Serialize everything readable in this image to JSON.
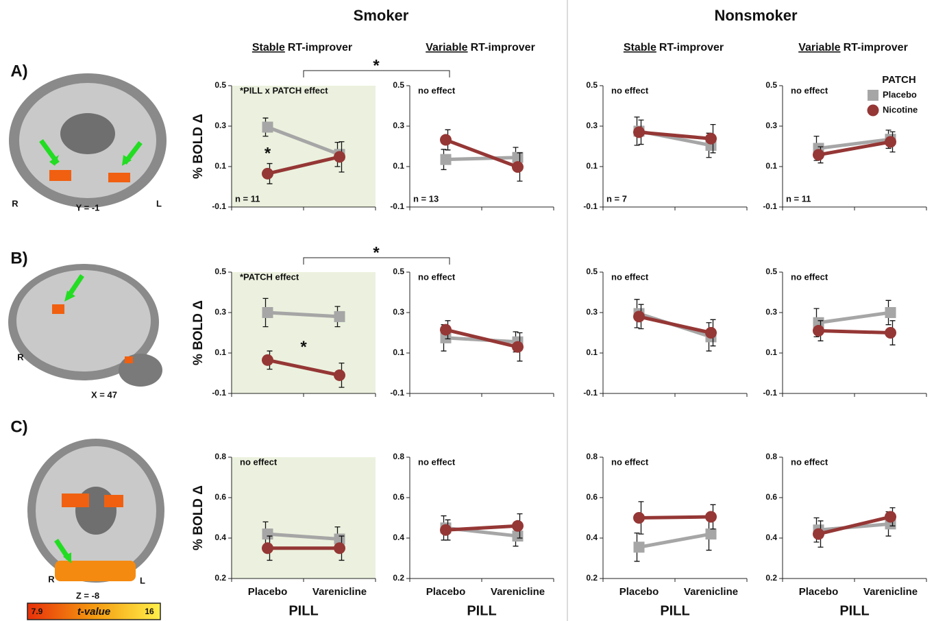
{
  "header": {
    "groups": [
      "Smoker",
      "Nonsmoker"
    ],
    "columns": [
      {
        "underlined": "Stable",
        "rest": "RT-improver"
      },
      {
        "underlined": "Variable",
        "rest": "RT-improver"
      },
      {
        "underlined": "Stable",
        "rest": "RT-improver"
      },
      {
        "underlined": "Variable",
        "rest": "RT-improver"
      }
    ]
  },
  "rows": [
    "A)",
    "B)",
    "C)"
  ],
  "comparisons": [
    "*",
    "*"
  ],
  "brain_images": [
    {
      "left": "R",
      "right": "L",
      "slice": "Y = -1"
    },
    {
      "left": "R",
      "slice": "X = 47"
    },
    {
      "left": "R",
      "right": "L",
      "slice": "Z = -8"
    }
  ],
  "colorbar": {
    "min": "7.9",
    "label": "t-value",
    "max": "16"
  },
  "chart_data": [
    {
      "type": "line",
      "ylabel": "% BOLD Δ",
      "annotation": "*PILL x PATCH effect",
      "n": "n = 11",
      "star": "*",
      "shaded": true,
      "background": "#ebf1de",
      "categories": [
        null,
        null
      ],
      "ylim": [
        -0.1,
        0.5
      ],
      "yticks": [
        -0.1,
        0.1,
        0.3,
        0.5
      ],
      "series": [
        {
          "name": "Placebo",
          "color": "#a6a6a6",
          "marker": "square",
          "values": [
            0.295,
            0.16
          ],
          "errors": [
            0.045,
            0.06
          ]
        },
        {
          "name": "Nicotine",
          "color": "#953735",
          "marker": "circle",
          "values": [
            0.065,
            0.148
          ],
          "errors": [
            0.05,
            0.075
          ]
        }
      ]
    },
    {
      "type": "line",
      "annotation": "no effect",
      "n": "n = 13",
      "categories": [
        null,
        null
      ],
      "ylim": [
        -0.1,
        0.5
      ],
      "yticks": [
        -0.1,
        0.1,
        0.3,
        0.5
      ],
      "series": [
        {
          "name": "Placebo",
          "color": "#a6a6a6",
          "marker": "square",
          "values": [
            0.135,
            0.145
          ],
          "errors": [
            0.05,
            0.05
          ]
        },
        {
          "name": "Nicotine",
          "color": "#953735",
          "marker": "circle",
          "values": [
            0.232,
            0.098
          ],
          "errors": [
            0.05,
            0.07
          ]
        }
      ]
    },
    {
      "type": "line",
      "annotation": "no effect",
      "n": "n = 7",
      "categories": [
        null,
        null
      ],
      "ylim": [
        -0.1,
        0.5
      ],
      "yticks": [
        -0.1,
        0.1,
        0.3,
        0.5
      ],
      "series": [
        {
          "name": "Placebo",
          "color": "#a6a6a6",
          "marker": "square",
          "values": [
            0.275,
            0.205
          ],
          "errors": [
            0.07,
            0.06
          ]
        },
        {
          "name": "Nicotine",
          "color": "#953735",
          "marker": "circle",
          "values": [
            0.27,
            0.238
          ],
          "errors": [
            0.06,
            0.07
          ]
        }
      ]
    },
    {
      "type": "line",
      "annotation": "no effect",
      "n": "n = 11",
      "legend": "upper right",
      "legend_title": "PATCH",
      "categories": [
        null,
        null
      ],
      "ylim": [
        -0.1,
        0.5
      ],
      "yticks": [
        -0.1,
        0.1,
        0.3,
        0.5
      ],
      "series": [
        {
          "name": "Placebo",
          "color": "#a6a6a6",
          "marker": "square",
          "values": [
            0.19,
            0.235
          ],
          "errors": [
            0.06,
            0.045
          ]
        },
        {
          "name": "Nicotine",
          "color": "#953735",
          "marker": "circle",
          "values": [
            0.158,
            0.222
          ],
          "errors": [
            0.04,
            0.05
          ]
        }
      ]
    },
    {
      "type": "line",
      "ylabel": "% BOLD Δ",
      "annotation": "*PATCH effect",
      "star": "*",
      "shaded": true,
      "background": "#ebf1de",
      "categories": [
        null,
        null
      ],
      "ylim": [
        -0.1,
        0.5
      ],
      "yticks": [
        -0.1,
        0.1,
        0.3,
        0.5
      ],
      "series": [
        {
          "name": "Placebo",
          "color": "#a6a6a6",
          "marker": "square",
          "values": [
            0.3,
            0.28
          ],
          "errors": [
            0.07,
            0.05
          ]
        },
        {
          "name": "Nicotine",
          "color": "#953735",
          "marker": "circle",
          "values": [
            0.065,
            -0.01
          ],
          "errors": [
            0.045,
            0.06
          ]
        }
      ]
    },
    {
      "type": "line",
      "annotation": "no effect",
      "categories": [
        null,
        null
      ],
      "ylim": [
        -0.1,
        0.5
      ],
      "yticks": [
        -0.1,
        0.1,
        0.3,
        0.5
      ],
      "series": [
        {
          "name": "Placebo",
          "color": "#a6a6a6",
          "marker": "square",
          "values": [
            0.175,
            0.155
          ],
          "errors": [
            0.065,
            0.05
          ]
        },
        {
          "name": "Nicotine",
          "color": "#953735",
          "marker": "circle",
          "values": [
            0.215,
            0.13
          ],
          "errors": [
            0.045,
            0.07
          ]
        }
      ]
    },
    {
      "type": "line",
      "annotation": "no effect",
      "categories": [
        null,
        null
      ],
      "ylim": [
        -0.1,
        0.5
      ],
      "yticks": [
        -0.1,
        0.1,
        0.3,
        0.5
      ],
      "series": [
        {
          "name": "Placebo",
          "color": "#a6a6a6",
          "marker": "square",
          "values": [
            0.295,
            0.18
          ],
          "errors": [
            0.07,
            0.07
          ]
        },
        {
          "name": "Nicotine",
          "color": "#953735",
          "marker": "circle",
          "values": [
            0.28,
            0.2
          ],
          "errors": [
            0.06,
            0.065
          ]
        }
      ]
    },
    {
      "type": "line",
      "annotation": "no effect",
      "categories": [
        null,
        null
      ],
      "ylim": [
        -0.1,
        0.5
      ],
      "yticks": [
        -0.1,
        0.1,
        0.3,
        0.5
      ],
      "series": [
        {
          "name": "Placebo",
          "color": "#a6a6a6",
          "marker": "square",
          "values": [
            0.25,
            0.3
          ],
          "errors": [
            0.07,
            0.06
          ]
        },
        {
          "name": "Nicotine",
          "color": "#953735",
          "marker": "circle",
          "values": [
            0.21,
            0.2
          ],
          "errors": [
            0.05,
            0.06
          ]
        }
      ]
    },
    {
      "type": "line",
      "ylabel": "% BOLD Δ",
      "xlabel": "PILL",
      "annotation": "no effect",
      "shaded": true,
      "background": "#ebf1de",
      "categories": [
        "Placebo",
        "Varenicline"
      ],
      "ylim": [
        0.2,
        0.8
      ],
      "yticks": [
        0.2,
        0.4,
        0.6,
        0.8
      ],
      "series": [
        {
          "name": "Placebo",
          "color": "#a6a6a6",
          "marker": "square",
          "values": [
            0.42,
            0.395
          ],
          "errors": [
            0.06,
            0.06
          ]
        },
        {
          "name": "Nicotine",
          "color": "#953735",
          "marker": "circle",
          "values": [
            0.35,
            0.35
          ],
          "errors": [
            0.06,
            0.06
          ]
        }
      ]
    },
    {
      "type": "line",
      "xlabel": "PILL",
      "annotation": "no effect",
      "categories": [
        "Placebo",
        "Varenicline"
      ],
      "ylim": [
        0.2,
        0.8
      ],
      "yticks": [
        0.2,
        0.4,
        0.6,
        0.8
      ],
      "series": [
        {
          "name": "Placebo",
          "color": "#a6a6a6",
          "marker": "square",
          "values": [
            0.45,
            0.41
          ],
          "errors": [
            0.06,
            0.05
          ]
        },
        {
          "name": "Nicotine",
          "color": "#953735",
          "marker": "circle",
          "values": [
            0.44,
            0.46
          ],
          "errors": [
            0.05,
            0.06
          ]
        }
      ]
    },
    {
      "type": "line",
      "xlabel": "PILL",
      "annotation": "no effect",
      "categories": [
        "Placebo",
        "Varenicline"
      ],
      "ylim": [
        0.2,
        0.8
      ],
      "yticks": [
        0.2,
        0.4,
        0.6,
        0.8
      ],
      "series": [
        {
          "name": "Placebo",
          "color": "#a6a6a6",
          "marker": "square",
          "values": [
            0.355,
            0.42
          ],
          "errors": [
            0.07,
            0.08
          ]
        },
        {
          "name": "Nicotine",
          "color": "#953735",
          "marker": "circle",
          "values": [
            0.5,
            0.505
          ],
          "errors": [
            0.08,
            0.06
          ]
        }
      ]
    },
    {
      "type": "line",
      "xlabel": "PILL",
      "annotation": "no effect",
      "categories": [
        "Placebo",
        "Varenicline"
      ],
      "ylim": [
        0.2,
        0.8
      ],
      "yticks": [
        0.2,
        0.4,
        0.6,
        0.8
      ],
      "series": [
        {
          "name": "Placebo",
          "color": "#a6a6a6",
          "marker": "square",
          "values": [
            0.44,
            0.47
          ],
          "errors": [
            0.06,
            0.06
          ]
        },
        {
          "name": "Nicotine",
          "color": "#953735",
          "marker": "circle",
          "values": [
            0.42,
            0.505
          ],
          "errors": [
            0.065,
            0.045
          ]
        }
      ]
    }
  ]
}
